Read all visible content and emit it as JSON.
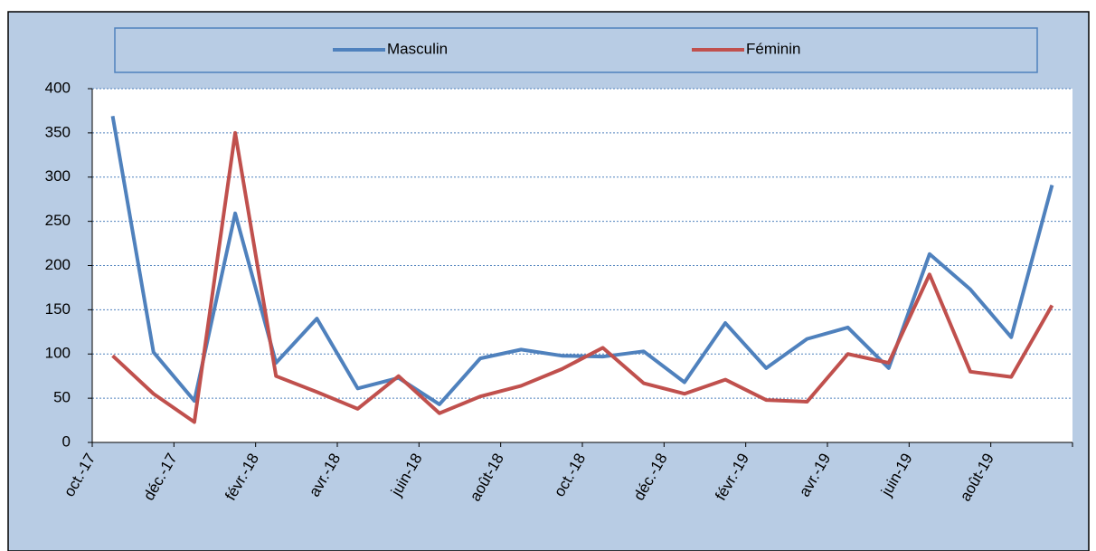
{
  "chart_data": {
    "type": "line",
    "categories": [
      "oct.-17",
      null,
      "déc.-17",
      null,
      "févr.-18",
      null,
      "avr.-18",
      null,
      "juin-18",
      null,
      "août-18",
      null,
      "oct.-18",
      null,
      "déc.-18",
      null,
      "févr.-19",
      null,
      "avr.-19",
      null,
      "juin-19",
      null,
      "août-19",
      null
    ],
    "series": [
      {
        "name": "Masculin",
        "color": "#4f81bd",
        "values": [
          369,
          102,
          47,
          259,
          90,
          140,
          61,
          73,
          43,
          95,
          105,
          98,
          97,
          103,
          68,
          135,
          84,
          117,
          130,
          84,
          213,
          173,
          119,
          291
        ]
      },
      {
        "name": "Féminin",
        "color": "#c0504d",
        "values": [
          98,
          55,
          23,
          350,
          75,
          57,
          38,
          75,
          33,
          52,
          64,
          83,
          107,
          67,
          55,
          71,
          48,
          46,
          100,
          90,
          190,
          80,
          74,
          155
        ]
      }
    ],
    "ylim": [
      0,
      400
    ],
    "yticks": [
      0,
      50,
      100,
      150,
      200,
      250,
      300,
      350,
      400
    ],
    "grid": true,
    "legend": "top"
  }
}
